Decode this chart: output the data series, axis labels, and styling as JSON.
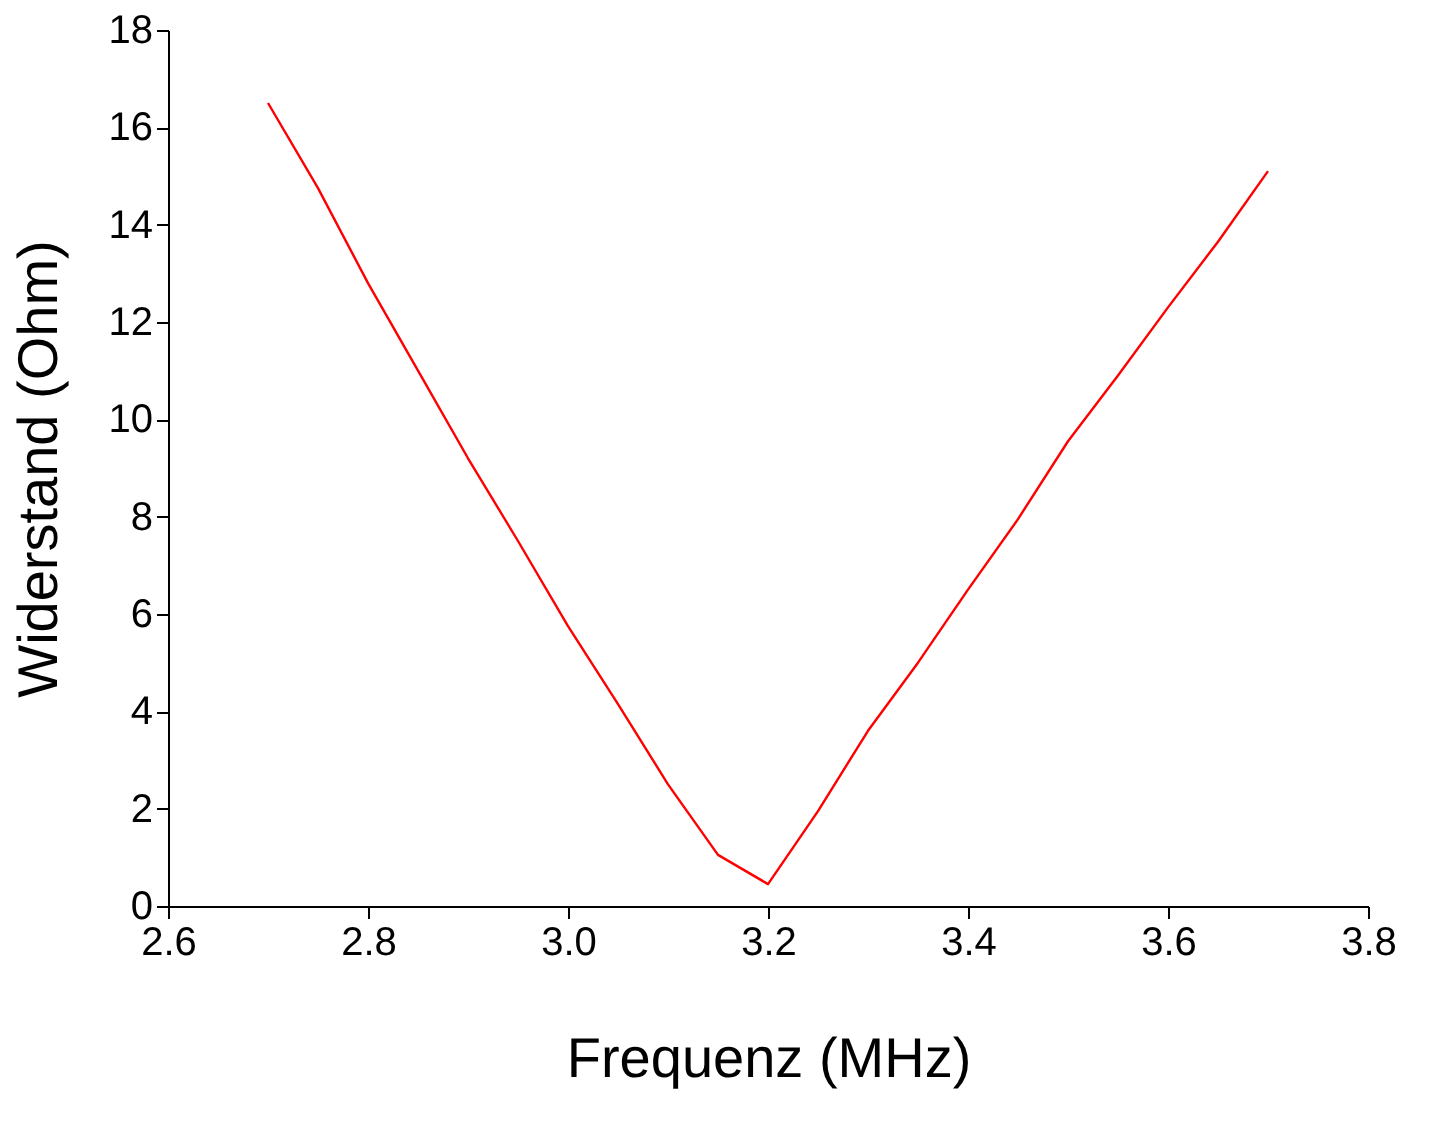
{
  "chart_data": {
    "type": "line",
    "xlabel": "Frequenz (MHz)",
    "ylabel": "Widerstand (Ohm)",
    "x": [
      2.7,
      2.75,
      2.8,
      2.85,
      2.9,
      2.95,
      3.0,
      3.05,
      3.1,
      3.15,
      3.2,
      3.25,
      3.3,
      3.35,
      3.4,
      3.45,
      3.5,
      3.55,
      3.6,
      3.65,
      3.7
    ],
    "series": [
      {
        "color": "#ff0000",
        "values": [
          16.5,
          14.75,
          12.8,
          11.0,
          9.2,
          7.5,
          5.75,
          4.15,
          2.5,
          1.05,
          0.45,
          1.95,
          3.6,
          5.0,
          6.5,
          7.95,
          9.55,
          10.9,
          12.3,
          13.65,
          15.1
        ]
      }
    ],
    "xlim": [
      2.6,
      3.8
    ],
    "xticks": [
      2.6,
      2.8,
      {
        "value": 3,
        "label": "3.0"
      },
      3.2,
      3.4,
      3.6,
      3.8
    ],
    "ylim": [
      0,
      18
    ],
    "yticks": [
      0,
      2,
      4,
      6,
      8,
      10,
      12,
      14,
      16,
      18
    ],
    "grid": false,
    "marker": "none",
    "line_style": "solid"
  }
}
